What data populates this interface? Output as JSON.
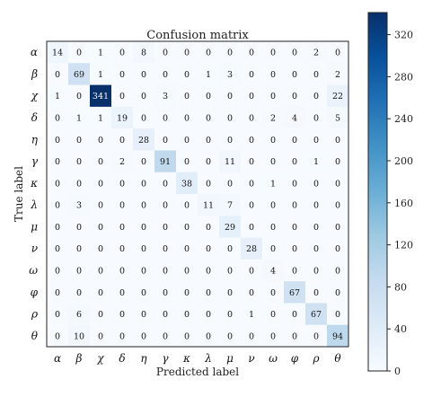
{
  "chart_data": {
    "type": "heatmap",
    "title": "Confusion matrix",
    "xlabel": "Predicted label",
    "ylabel": "True label",
    "labels": [
      "α",
      "β",
      "χ",
      "δ",
      "η",
      "γ",
      "κ",
      "λ",
      "μ",
      "ν",
      "ω",
      "φ",
      "ρ",
      "θ"
    ],
    "matrix": [
      [
        14,
        0,
        1,
        0,
        8,
        0,
        0,
        0,
        0,
        0,
        0,
        0,
        2,
        0
      ],
      [
        0,
        69,
        1,
        0,
        0,
        0,
        0,
        1,
        3,
        0,
        0,
        0,
        0,
        2
      ],
      [
        1,
        0,
        341,
        0,
        0,
        3,
        0,
        0,
        0,
        0,
        0,
        0,
        0,
        22
      ],
      [
        0,
        1,
        1,
        19,
        0,
        0,
        0,
        0,
        0,
        0,
        2,
        4,
        0,
        5
      ],
      [
        0,
        0,
        0,
        0,
        28,
        0,
        0,
        0,
        0,
        0,
        0,
        0,
        0,
        0
      ],
      [
        0,
        0,
        0,
        2,
        0,
        91,
        0,
        0,
        11,
        0,
        0,
        0,
        1,
        0
      ],
      [
        0,
        0,
        0,
        0,
        0,
        0,
        38,
        0,
        0,
        0,
        1,
        0,
        0,
        0
      ],
      [
        0,
        3,
        0,
        0,
        0,
        0,
        0,
        11,
        7,
        0,
        0,
        0,
        0,
        0
      ],
      [
        0,
        0,
        0,
        0,
        0,
        0,
        0,
        0,
        29,
        0,
        0,
        0,
        0,
        0
      ],
      [
        0,
        0,
        0,
        0,
        0,
        0,
        0,
        0,
        0,
        28,
        0,
        0,
        0,
        0
      ],
      [
        0,
        0,
        0,
        0,
        0,
        0,
        0,
        0,
        0,
        0,
        4,
        0,
        0,
        0
      ],
      [
        0,
        0,
        0,
        0,
        0,
        0,
        0,
        0,
        0,
        0,
        0,
        67,
        0,
        0
      ],
      [
        0,
        6,
        0,
        0,
        0,
        0,
        0,
        0,
        0,
        1,
        0,
        0,
        67,
        0
      ],
      [
        0,
        10,
        0,
        0,
        0,
        0,
        0,
        0,
        0,
        0,
        0,
        0,
        0,
        94
      ]
    ],
    "colorbar": {
      "min": 0,
      "max": 341,
      "ticks": [
        0,
        40,
        80,
        120,
        160,
        200,
        240,
        280,
        320
      ],
      "colormap": "Blues",
      "low_color": "#f7fbff",
      "high_color": "#08306b"
    }
  }
}
